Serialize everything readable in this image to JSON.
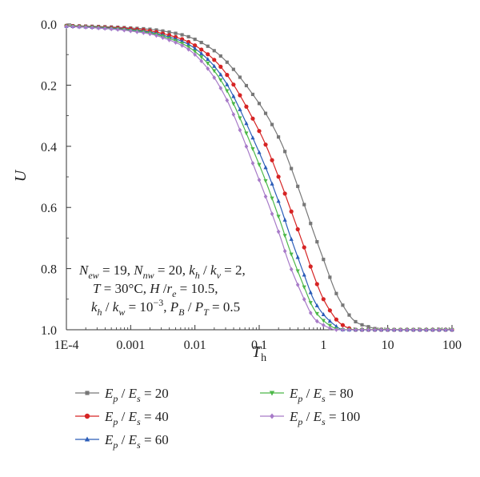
{
  "chart_data": {
    "type": "line",
    "xlabel": "T",
    "xlabel_sub": "h",
    "ylabel": "U",
    "xscale": "log",
    "xlim": [
      0.0001,
      100
    ],
    "ylim": [
      1.0,
      0.0
    ],
    "y_inverted": true,
    "x_tick_labels": [
      "1E-4",
      "0.001",
      "0.01",
      "0.1",
      "1",
      "10",
      "100"
    ],
    "x_tick_values": [
      0.0001,
      0.001,
      0.01,
      0.1,
      1,
      10,
      100
    ],
    "y_tick_labels": [
      "0.0",
      "0.2",
      "0.4",
      "0.6",
      "0.8",
      "1.0"
    ],
    "y_tick_values": [
      0,
      0.2,
      0.4,
      0.6,
      0.8,
      1.0
    ],
    "grid": false,
    "legend_position": "bottom",
    "annotation_lines": [
      "N_ew = 19, N_nw = 20, k_h / k_v = 2,",
      "T = 30°C, H / r_e = 10.5,",
      "k_h / k_w = 10^−3, P_B / P_T = 0.5"
    ],
    "series": [
      {
        "name": "Ep / Es = 20",
        "color": "#777777",
        "marker": "square",
        "x": [
          0.0001,
          0.0003,
          0.001,
          0.003,
          0.01,
          0.03,
          0.1,
          0.2,
          0.3,
          0.5,
          0.7,
          1,
          1.5,
          2,
          3,
          5,
          10,
          100
        ],
        "y": [
          0.005,
          0.008,
          0.013,
          0.022,
          0.05,
          0.12,
          0.26,
          0.37,
          0.46,
          0.59,
          0.68,
          0.77,
          0.87,
          0.92,
          0.97,
          0.99,
          1.0,
          1.0
        ]
      },
      {
        "name": "Ep / Es = 40",
        "color": "#d62424",
        "marker": "circle",
        "x": [
          0.0001,
          0.0003,
          0.001,
          0.003,
          0.01,
          0.03,
          0.1,
          0.2,
          0.3,
          0.5,
          0.7,
          1,
          1.5,
          2,
          3,
          5,
          10,
          100
        ],
        "y": [
          0.006,
          0.01,
          0.016,
          0.03,
          0.07,
          0.16,
          0.35,
          0.5,
          0.6,
          0.73,
          0.82,
          0.9,
          0.96,
          0.985,
          1.0,
          1.0,
          1.0,
          1.0
        ]
      },
      {
        "name": "Ep / Es = 60",
        "color": "#2a5cb8",
        "marker": "triangle-up",
        "x": [
          0.0001,
          0.0003,
          0.001,
          0.003,
          0.01,
          0.03,
          0.1,
          0.2,
          0.3,
          0.5,
          0.7,
          1,
          1.5,
          2,
          3,
          5,
          10,
          100
        ],
        "y": [
          0.007,
          0.011,
          0.019,
          0.035,
          0.08,
          0.19,
          0.42,
          0.58,
          0.69,
          0.82,
          0.9,
          0.95,
          0.985,
          1.0,
          1.0,
          1.0,
          1.0,
          1.0
        ]
      },
      {
        "name": "Ep / Es = 80",
        "color": "#4cb848",
        "marker": "triangle-down",
        "x": [
          0.0001,
          0.0003,
          0.001,
          0.003,
          0.01,
          0.03,
          0.1,
          0.2,
          0.3,
          0.5,
          0.7,
          1,
          1.5,
          2,
          3,
          5,
          10,
          100
        ],
        "y": [
          0.007,
          0.012,
          0.021,
          0.039,
          0.09,
          0.21,
          0.46,
          0.63,
          0.74,
          0.86,
          0.93,
          0.97,
          0.995,
          1.0,
          1.0,
          1.0,
          1.0,
          1.0
        ]
      },
      {
        "name": "Ep / Es = 100",
        "color": "#a77ac8",
        "marker": "diamond",
        "x": [
          0.0001,
          0.0003,
          0.001,
          0.003,
          0.01,
          0.03,
          0.1,
          0.2,
          0.3,
          0.5,
          0.7,
          1,
          1.5,
          2,
          3,
          5,
          10,
          100
        ],
        "y": [
          0.008,
          0.013,
          0.023,
          0.043,
          0.1,
          0.24,
          0.51,
          0.68,
          0.79,
          0.9,
          0.96,
          0.985,
          1.0,
          1.0,
          1.0,
          1.0,
          1.0,
          1.0
        ]
      }
    ]
  }
}
